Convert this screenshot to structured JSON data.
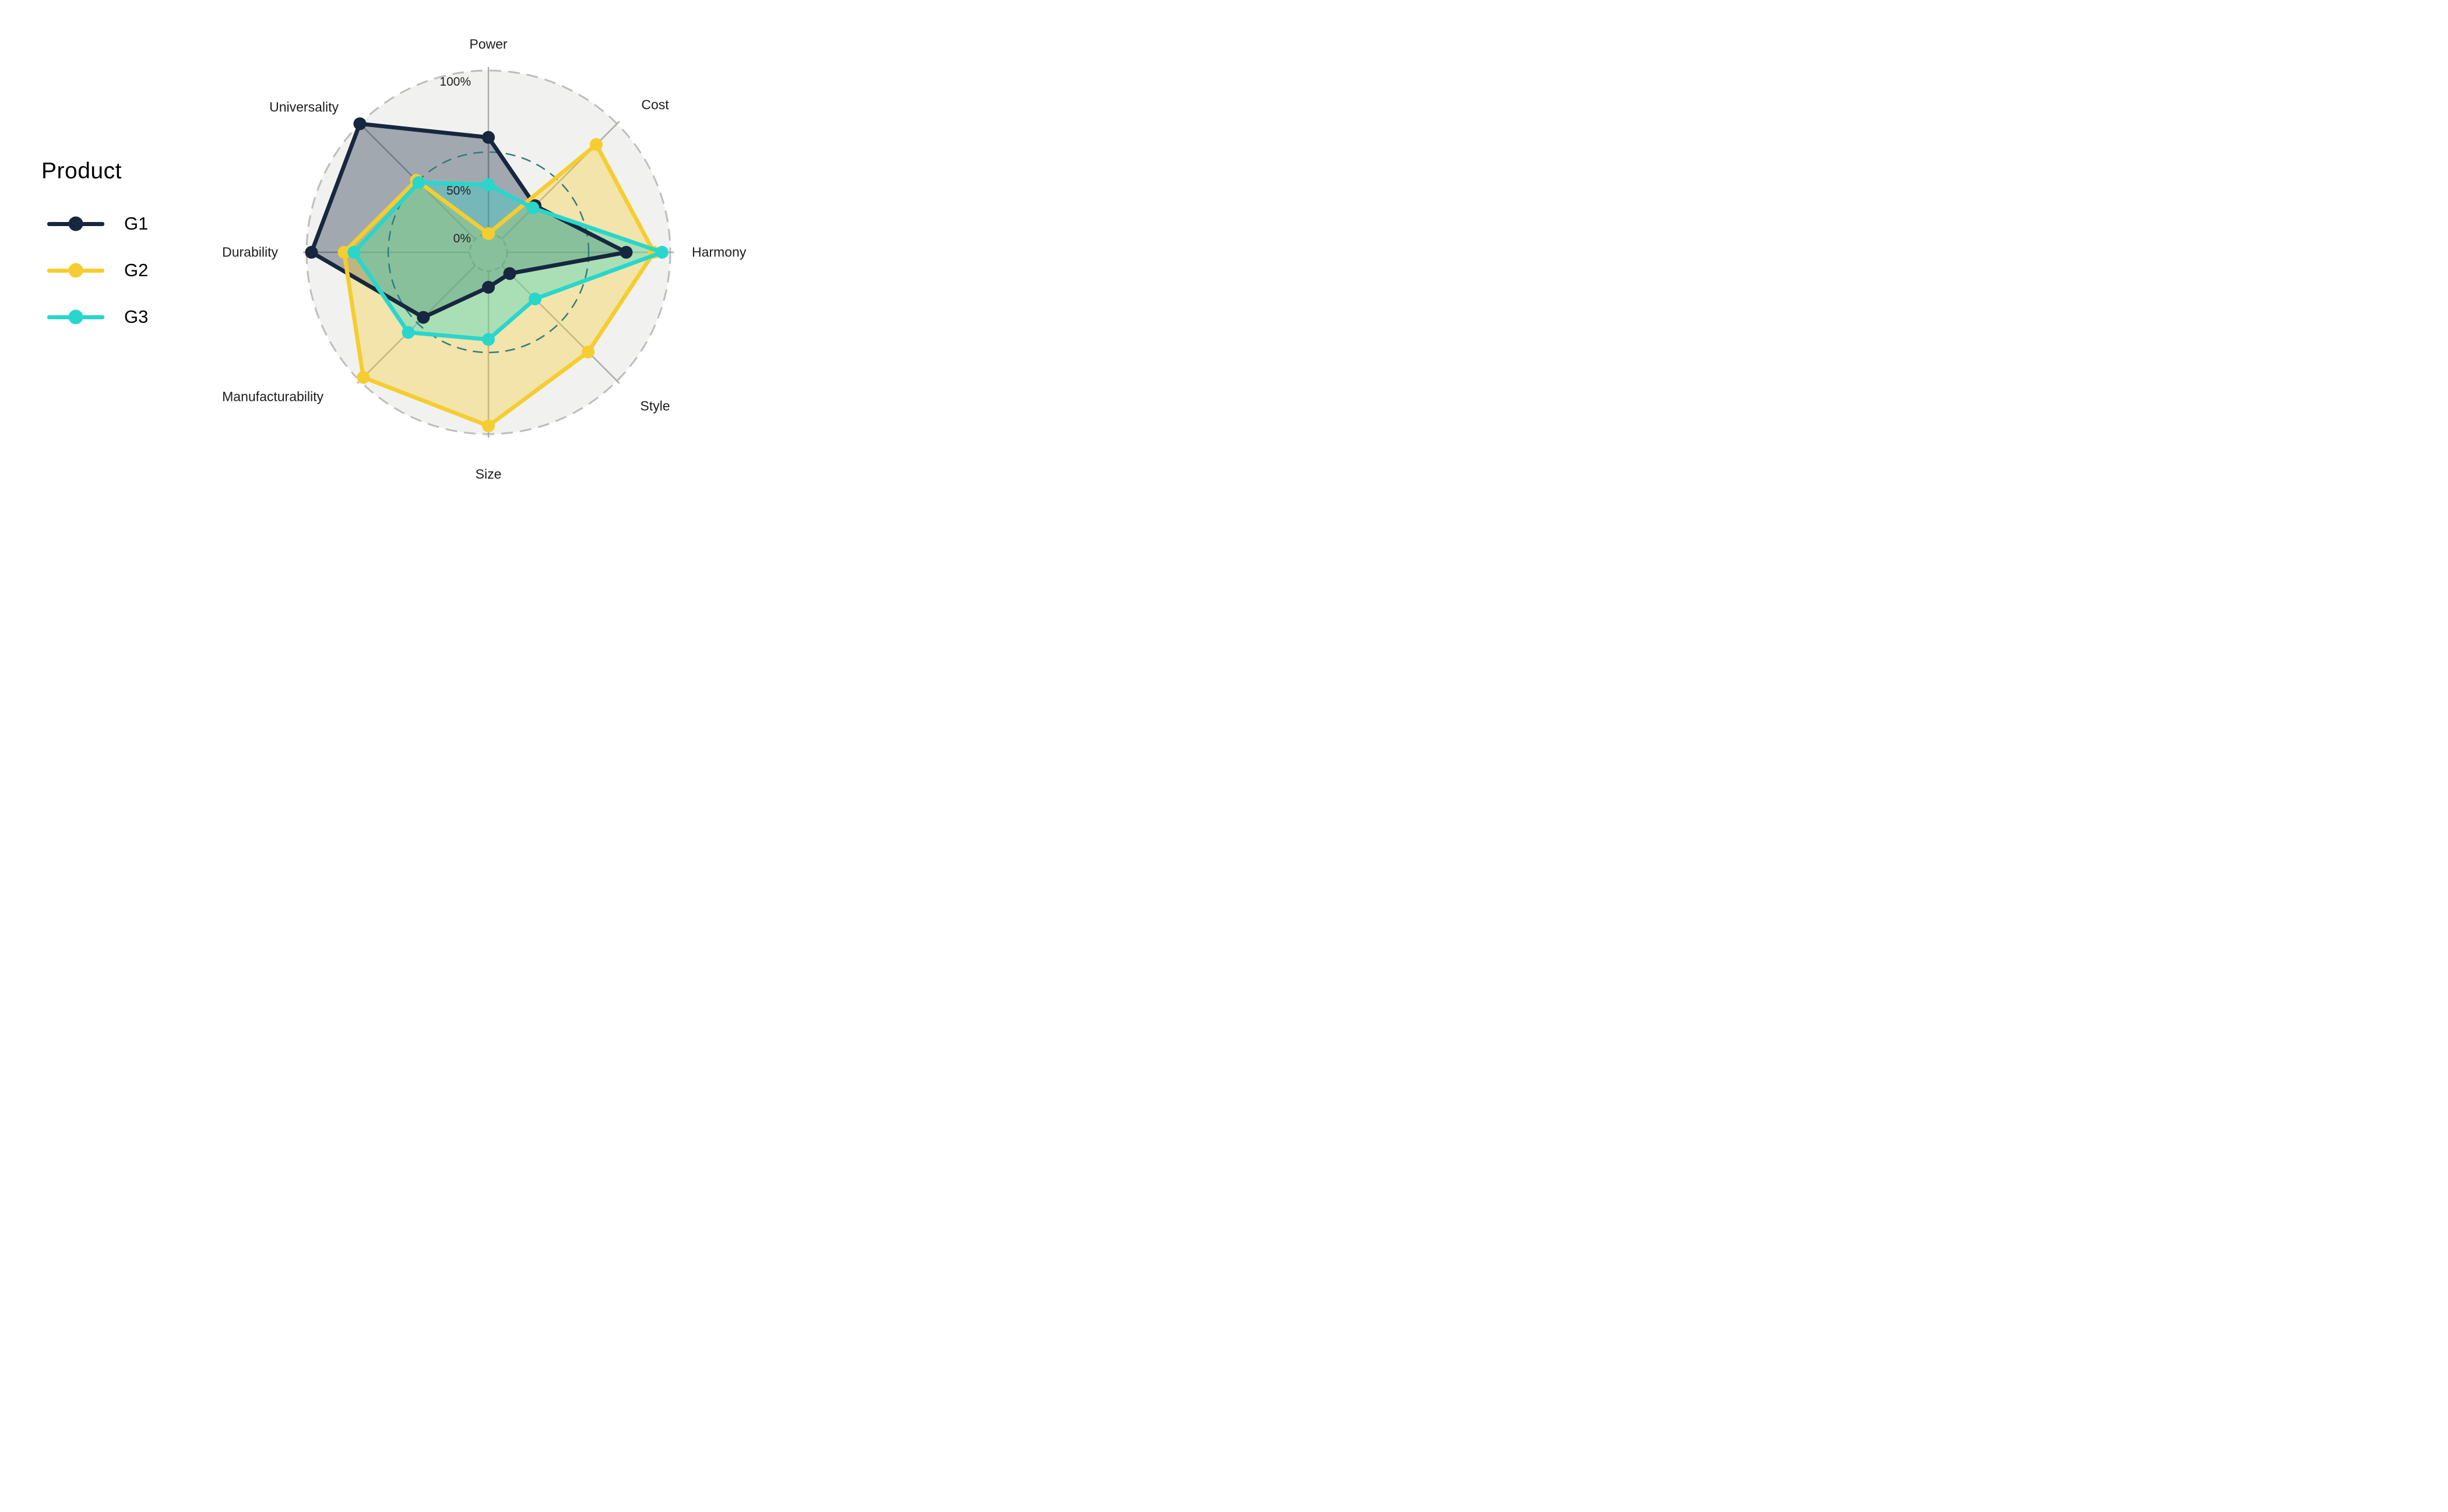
{
  "legend": {
    "title": "Product",
    "items": [
      {
        "label": "G1",
        "color": "#17273F"
      },
      {
        "label": "G2",
        "color": "#F5CD30"
      },
      {
        "label": "G3",
        "color": "#29D6CC"
      }
    ]
  },
  "chart_data": {
    "type": "radar",
    "categories": [
      "Power",
      "Cost",
      "Harmony",
      "Style",
      "Size",
      "Manufacturability",
      "Durability",
      "Universality"
    ],
    "series": [
      {
        "name": "G1",
        "color": "#17273F",
        "values": [
          59,
          29,
          73,
          7,
          10,
          45,
          97,
          100
        ]
      },
      {
        "name": "G2",
        "color": "#F5CD30",
        "values": [
          0,
          82,
          90,
          75,
          95,
          97,
          77,
          51
        ]
      },
      {
        "name": "G3",
        "color": "#29D6CC",
        "values": [
          30,
          27,
          95,
          29,
          42,
          58,
          71,
          49
        ]
      }
    ],
    "range": [
      0,
      100
    ],
    "radial_tick_labels": [
      "0%",
      "50%",
      "100%"
    ],
    "legend_position": "left",
    "grid": {
      "outer_ring_color": "#BDBDBD",
      "mid_ring_color": "#2F7D7A",
      "hub_ring_color": "#A3A3A3",
      "spoke_color": "#ABABAB",
      "disc_fill": "#F1F1F0"
    }
  }
}
